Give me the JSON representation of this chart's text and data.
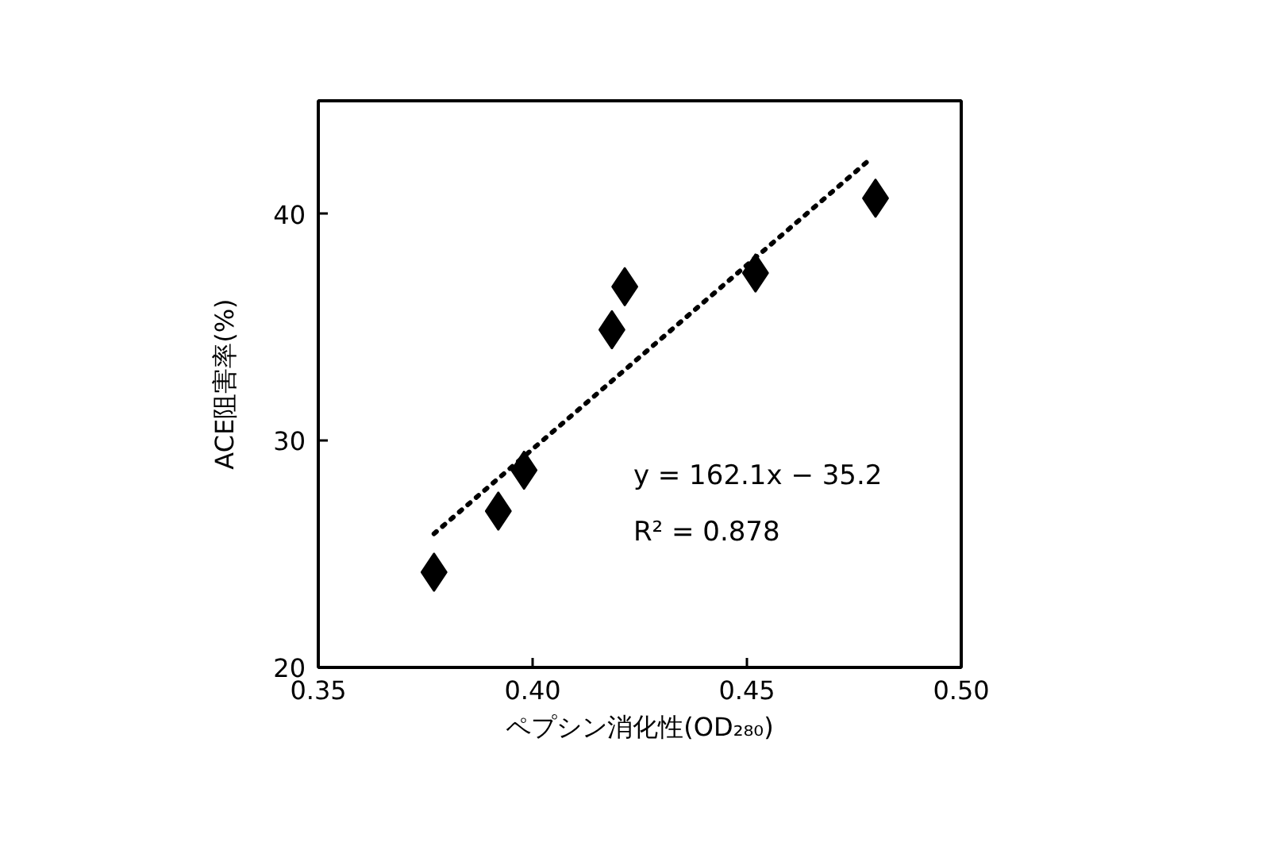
{
  "chart_data": {
    "type": "scatter",
    "xlabel": "ペプシン消化性(OD₂₈₀)",
    "ylabel": "ACE阻害率(%)",
    "xlim": [
      0.35,
      0.5
    ],
    "xticks": [
      {
        "value": 0.35,
        "label": "0.35"
      },
      {
        "value": 0.4,
        "label": "0.40"
      },
      {
        "value": 0.45,
        "label": "0.45"
      },
      {
        "value": 0.5,
        "label": "0.50"
      }
    ],
    "ylim": [
      20,
      45
    ],
    "yticks": [
      20,
      30,
      40
    ],
    "grid": false,
    "marker": "diamond",
    "annotations": [
      "y = 162.1x − 35.2",
      "R² = 0.878"
    ],
    "series": [
      {
        "color": "#000000",
        "x": [
          0.377,
          0.392,
          0.398,
          0.4185,
          0.4215,
          0.452,
          0.48
        ],
        "values": [
          24.2,
          26.9,
          28.7,
          34.9,
          36.8,
          37.4,
          40.7
        ]
      },
      {
        "type": "line",
        "color": "#000000",
        "marker": "none",
        "line_style": "dotted",
        "x": [
          0.377,
          0.478
        ],
        "values": [
          25.9,
          42.3
        ]
      }
    ]
  }
}
